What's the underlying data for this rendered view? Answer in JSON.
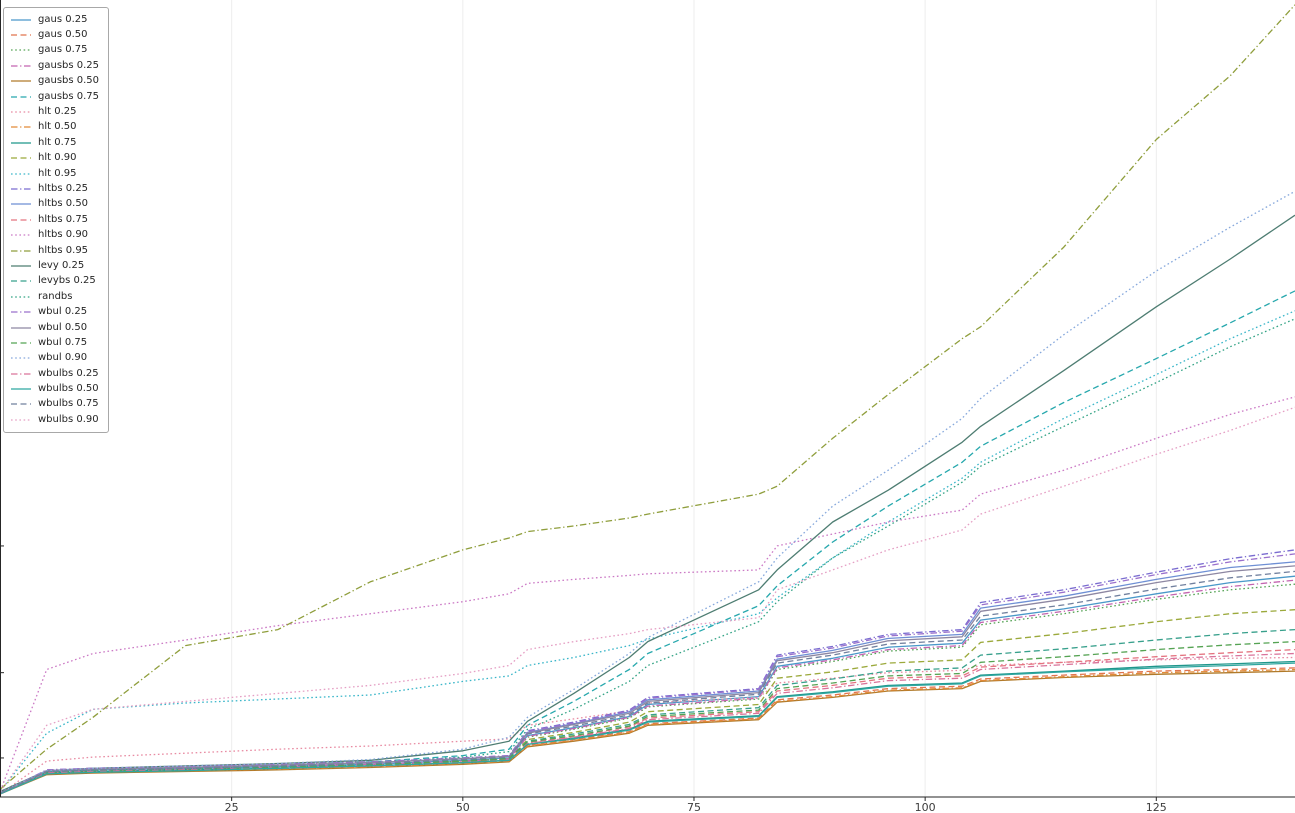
{
  "figure": {
    "background": "#ffffff",
    "axis_color": "#262626",
    "grid_color": "#ededed",
    "tick_label_color": "#3c3c3c"
  },
  "chart_data": {
    "type": "line",
    "title": "",
    "xlabel": "",
    "ylabel": "",
    "xlim": [
      0,
      140
    ],
    "ylim": [
      0,
      100
    ],
    "x_ticks": [
      25,
      50,
      75,
      100,
      125
    ],
    "x_tick_labels": [
      "25",
      "50",
      "75",
      "100",
      "125"
    ],
    "y_ticks_unlabeled": [
      4.9,
      15.6,
      31.5
    ],
    "y_axis_labels_visible": false,
    "grid": "vertical",
    "legend_position": "upper-left",
    "x": [
      0,
      5,
      10,
      20,
      30,
      40,
      50,
      55,
      57,
      62,
      68,
      70,
      82,
      84,
      90,
      96,
      104,
      106,
      115,
      125,
      133,
      140
    ],
    "series": [
      {
        "name": "gaus 0.25",
        "color": "#4a98c9",
        "style": "solid",
        "values": [
          0.5,
          3.2,
          3.4,
          3.6,
          3.8,
          4.1,
          4.6,
          4.9,
          7.7,
          8.7,
          10.1,
          11.6,
          12.6,
          16.4,
          17.4,
          18.8,
          19.3,
          22.2,
          23.6,
          25.5,
          26.9,
          27.7
        ]
      },
      {
        "name": "gaus 0.50",
        "color": "#e1744e",
        "style": "dashed",
        "values": [
          0.4,
          2.9,
          3.1,
          3.3,
          3.5,
          3.8,
          4.2,
          4.5,
          6.5,
          7.2,
          8.2,
          9.2,
          9.9,
          12.2,
          12.8,
          13.6,
          13.9,
          14.8,
          15.3,
          15.8,
          16.0,
          16.2
        ]
      },
      {
        "name": "gaus 0.75",
        "color": "#56a456",
        "style": "dotted",
        "values": [
          0.5,
          3.1,
          3.3,
          3.5,
          3.7,
          4.0,
          4.5,
          4.8,
          7.5,
          8.5,
          9.9,
          11.3,
          12.3,
          16.0,
          17.0,
          18.3,
          18.8,
          21.6,
          23.0,
          24.8,
          26.0,
          26.7
        ]
      },
      {
        "name": "gausbs 0.25",
        "color": "#c365b0",
        "style": "dashdot",
        "values": [
          0.5,
          3.1,
          3.3,
          3.5,
          3.8,
          4.1,
          4.5,
          4.8,
          7.6,
          8.6,
          10.0,
          11.4,
          12.4,
          16.2,
          17.2,
          18.5,
          19.0,
          21.9,
          23.3,
          25.1,
          26.4,
          27.2
        ]
      },
      {
        "name": "gausbs 0.50",
        "color": "#b07a2a",
        "style": "solid",
        "values": [
          0.4,
          2.8,
          3.0,
          3.2,
          3.4,
          3.7,
          4.1,
          4.4,
          6.3,
          7.0,
          8.0,
          9.0,
          9.7,
          11.9,
          12.5,
          13.3,
          13.6,
          14.5,
          15.0,
          15.4,
          15.6,
          15.8
        ]
      },
      {
        "name": "gausbs 0.75",
        "color": "#27a8ad",
        "style": "dashed",
        "values": [
          0.5,
          3.2,
          3.4,
          3.7,
          4.0,
          4.4,
          5.2,
          6.0,
          9.0,
          12.0,
          16.0,
          18.0,
          24.0,
          26.5,
          32.0,
          36.5,
          42.0,
          44.0,
          49.5,
          55.0,
          59.5,
          63.5
        ]
      },
      {
        "name": "hlt 0.25",
        "color": "#e88ba2",
        "style": "dotted",
        "values": [
          0.4,
          4.5,
          5.0,
          5.5,
          6.0,
          6.4,
          7.0,
          7.3,
          9.0,
          9.8,
          10.8,
          11.8,
          12.5,
          14.3,
          14.9,
          15.6,
          15.9,
          16.5,
          16.9,
          17.2,
          17.4,
          17.5
        ]
      },
      {
        "name": "hlt 0.50",
        "color": "#e28a38",
        "style": "dashdot",
        "values": [
          0.4,
          2.9,
          3.1,
          3.3,
          3.5,
          3.8,
          4.2,
          4.5,
          6.4,
          7.1,
          8.1,
          9.1,
          9.8,
          12.0,
          12.6,
          13.4,
          13.7,
          14.6,
          15.1,
          15.6,
          15.8,
          16.0
        ]
      },
      {
        "name": "hlt 0.75",
        "color": "#1f968b",
        "style": "solid",
        "values": [
          0.4,
          3.0,
          3.2,
          3.4,
          3.6,
          3.9,
          4.3,
          4.6,
          6.6,
          7.4,
          8.5,
          9.5,
          10.2,
          12.6,
          13.2,
          14.0,
          14.3,
          15.3,
          15.8,
          16.4,
          16.7,
          17.0
        ]
      },
      {
        "name": "hlt 0.90",
        "color": "#9ba93b",
        "style": "dashed",
        "values": [
          0.5,
          3.0,
          3.2,
          3.4,
          3.7,
          4.0,
          4.4,
          4.7,
          7.2,
          8.1,
          9.4,
          10.7,
          11.6,
          14.9,
          15.7,
          16.8,
          17.2,
          19.4,
          20.5,
          22.0,
          23.0,
          23.5
        ]
      },
      {
        "name": "hlt 0.95",
        "color": "#3ab6c9",
        "style": "dotted",
        "values": [
          0.8,
          8.0,
          11.0,
          11.8,
          12.3,
          12.8,
          14.5,
          15.2,
          16.5,
          17.5,
          19.0,
          19.8,
          23.0,
          25.0,
          30.0,
          34.5,
          40.0,
          42.0,
          47.5,
          53.0,
          57.5,
          61.0
        ]
      },
      {
        "name": "hltbs 0.25",
        "color": "#7a6cd0",
        "style": "dashdot",
        "values": [
          0.5,
          3.4,
          3.6,
          3.8,
          4.1,
          4.4,
          4.9,
          5.2,
          8.3,
          9.4,
          10.9,
          12.5,
          13.6,
          17.8,
          18.9,
          20.4,
          21.0,
          24.4,
          26.0,
          28.2,
          29.9,
          31.0
        ]
      },
      {
        "name": "hltbs 0.50",
        "color": "#6e8fd4",
        "style": "solid",
        "values": [
          0.5,
          3.3,
          3.5,
          3.7,
          4.0,
          4.3,
          4.8,
          5.1,
          8.1,
          9.2,
          10.7,
          12.2,
          13.3,
          17.3,
          18.4,
          19.9,
          20.4,
          23.7,
          25.2,
          27.3,
          28.8,
          29.5
        ]
      },
      {
        "name": "hltbs 0.75",
        "color": "#e4737f",
        "style": "dashed",
        "values": [
          0.4,
          3.0,
          3.2,
          3.4,
          3.6,
          3.9,
          4.4,
          4.7,
          6.8,
          7.6,
          8.8,
          9.9,
          10.7,
          13.3,
          14.0,
          14.9,
          15.2,
          16.3,
          16.9,
          17.6,
          18.1,
          18.5
        ]
      },
      {
        "name": "hltbs 0.90",
        "color": "#cb79c5",
        "style": "dotted",
        "values": [
          0.8,
          16.0,
          18.0,
          19.7,
          21.5,
          23.0,
          24.5,
          25.5,
          26.8,
          27.3,
          27.8,
          28.0,
          28.5,
          31.5,
          33.0,
          34.5,
          36.0,
          38.0,
          41.0,
          45.0,
          48.0,
          50.2
        ]
      },
      {
        "name": "hltbs 0.95",
        "color": "#8f9e3c",
        "style": "dashdot",
        "values": [
          1.0,
          6.0,
          10.0,
          19.0,
          21.0,
          27.0,
          31.0,
          32.5,
          33.3,
          34.0,
          35.0,
          35.5,
          38.0,
          39.0,
          45.0,
          50.5,
          57.5,
          59.0,
          69.0,
          82.5,
          90.5,
          99.4
        ]
      },
      {
        "name": "levy 0.25",
        "color": "#4e7d72",
        "style": "solid",
        "values": [
          0.7,
          3.3,
          3.6,
          3.9,
          4.2,
          4.6,
          5.8,
          7.0,
          9.5,
          13.0,
          17.5,
          19.5,
          26.0,
          28.5,
          34.5,
          38.5,
          44.5,
          46.5,
          53.5,
          61.5,
          67.5,
          73.0
        ]
      },
      {
        "name": "levybs 0.25",
        "color": "#38a08c",
        "style": "dashed",
        "values": [
          0.5,
          3.1,
          3.3,
          3.5,
          3.8,
          4.1,
          4.6,
          4.9,
          7.0,
          7.9,
          9.1,
          10.3,
          11.2,
          14.0,
          14.8,
          15.8,
          16.2,
          17.8,
          18.6,
          19.7,
          20.5,
          21.0
        ]
      },
      {
        "name": "randbs",
        "color": "#33a385",
        "style": "dotted",
        "values": [
          0.5,
          3.2,
          3.4,
          3.6,
          3.9,
          4.3,
          5.0,
          5.7,
          8.5,
          11.0,
          14.5,
          16.5,
          22.0,
          24.5,
          30.0,
          34.0,
          39.5,
          41.5,
          46.5,
          52.0,
          56.5,
          60.0
        ]
      },
      {
        "name": "wbul 0.25",
        "color": "#9a70cc",
        "style": "dashdot",
        "values": [
          0.5,
          3.4,
          3.6,
          3.8,
          4.1,
          4.4,
          4.9,
          5.2,
          8.2,
          9.3,
          10.8,
          12.4,
          13.5,
          17.6,
          18.7,
          20.2,
          20.8,
          24.1,
          25.7,
          27.9,
          29.5,
          30.5
        ]
      },
      {
        "name": "wbul 0.50",
        "color": "#8d87a2",
        "style": "solid",
        "values": [
          0.5,
          3.3,
          3.5,
          3.7,
          4.0,
          4.3,
          4.8,
          5.1,
          8.0,
          9.1,
          10.5,
          12.0,
          13.1,
          17.1,
          18.1,
          19.6,
          20.1,
          23.3,
          24.8,
          26.9,
          28.3,
          29.0
        ]
      },
      {
        "name": "wbul 0.75",
        "color": "#55a353",
        "style": "dashed",
        "values": [
          0.5,
          3.0,
          3.2,
          3.4,
          3.7,
          4.0,
          4.5,
          4.8,
          6.9,
          7.7,
          8.9,
          10.1,
          10.9,
          13.6,
          14.3,
          15.2,
          15.5,
          16.9,
          17.6,
          18.5,
          19.1,
          19.5
        ]
      },
      {
        "name": "wbul 0.90",
        "color": "#86a8dc",
        "style": "dotted",
        "values": [
          0.6,
          3.3,
          3.6,
          3.9,
          4.2,
          4.7,
          6.0,
          7.5,
          10.0,
          13.5,
          18.0,
          20.0,
          27.0,
          30.0,
          36.5,
          41.0,
          47.5,
          50.0,
          58.0,
          66.0,
          71.5,
          76.0
        ]
      },
      {
        "name": "wbulbs 0.25",
        "color": "#d9739a",
        "style": "dashdot",
        "values": [
          0.4,
          3.0,
          3.2,
          3.4,
          3.6,
          3.9,
          4.3,
          4.6,
          6.7,
          7.5,
          8.6,
          9.7,
          10.5,
          13.0,
          13.7,
          14.6,
          14.9,
          16.0,
          16.6,
          17.3,
          17.7,
          18.0
        ]
      },
      {
        "name": "wbulbs 0.50",
        "color": "#2fa7a0",
        "style": "solid",
        "values": [
          0.4,
          2.9,
          3.1,
          3.3,
          3.6,
          3.9,
          4.3,
          4.6,
          6.6,
          7.3,
          8.4,
          9.4,
          10.1,
          12.5,
          13.1,
          13.9,
          14.2,
          15.2,
          15.7,
          16.2,
          16.5,
          16.8
        ]
      },
      {
        "name": "wbulbs 0.75",
        "color": "#71809e",
        "style": "dashed",
        "values": [
          0.5,
          3.2,
          3.4,
          3.6,
          3.9,
          4.2,
          4.7,
          5.0,
          7.9,
          8.9,
          10.3,
          11.8,
          12.9,
          16.8,
          17.8,
          19.2,
          19.7,
          22.7,
          24.1,
          26.1,
          27.5,
          28.3
        ]
      },
      {
        "name": "wbulbs 0.90",
        "color": "#e59fc4",
        "style": "dotted",
        "values": [
          0.7,
          9.0,
          11.0,
          12.0,
          13.0,
          14.0,
          15.5,
          16.5,
          18.5,
          19.5,
          20.5,
          21.0,
          22.5,
          26.0,
          28.5,
          31.0,
          33.5,
          35.5,
          39.0,
          43.0,
          46.0,
          48.9
        ]
      }
    ]
  }
}
